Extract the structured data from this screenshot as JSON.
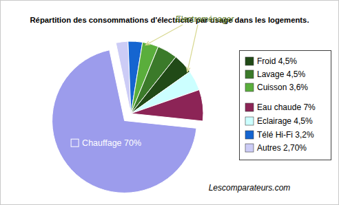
{
  "chart_data": {
    "type": "pie",
    "title": "Répartition des consommations d'électricité par usage dans les logements.",
    "categories": [
      "Autres 2,70%",
      "Télé Hi-Fi 3,2%",
      "Cuisson 3,6%",
      "Lavage 4,5%",
      "Froid 4,5%",
      "Eclairage 4,5%",
      "Eau chaude 7%",
      "Chauffage 70%"
    ],
    "values": [
      2.7,
      3.2,
      3.6,
      4.5,
      4.5,
      4.5,
      7,
      70
    ],
    "colors": [
      "#ccccf6",
      "#1565d0",
      "#5aae3c",
      "#3b7a2a",
      "#214a17",
      "#ccffff",
      "#8c2456",
      "#9c9cec"
    ],
    "annotations": [
      "Electroménager"
    ],
    "source": "Lescomparateurs.com",
    "legend": "right"
  }
}
